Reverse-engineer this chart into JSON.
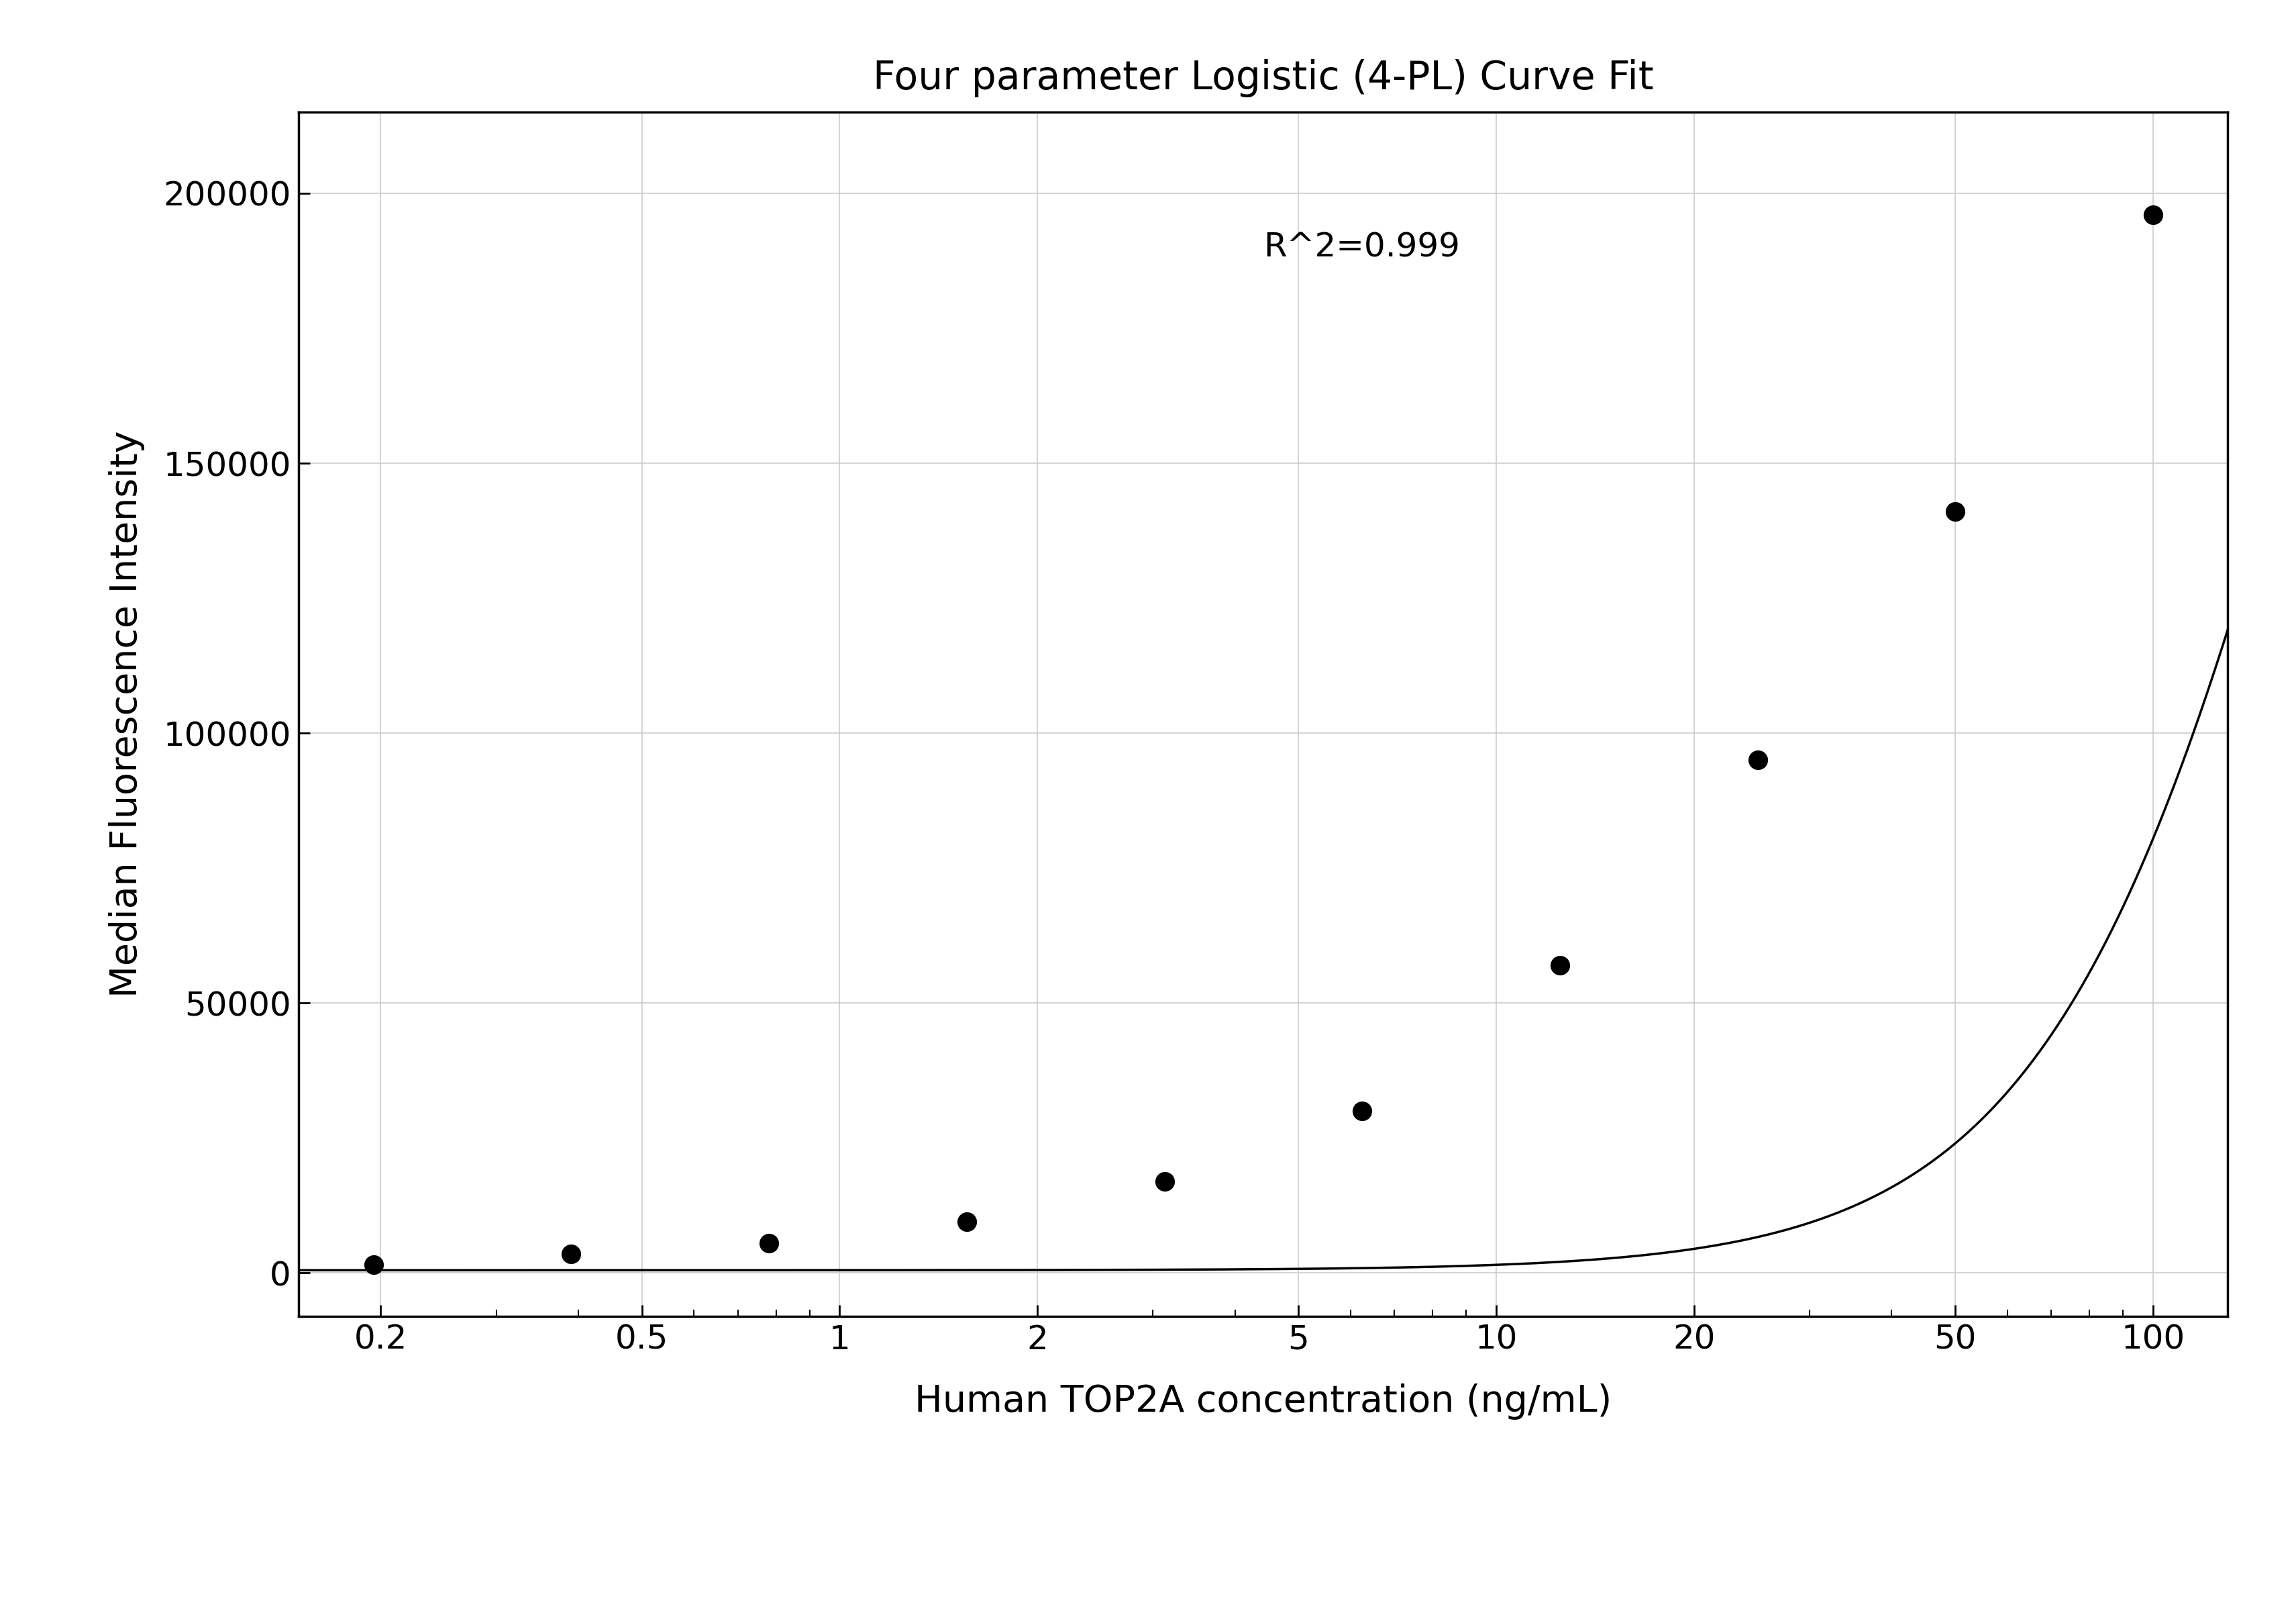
{
  "title": "Four parameter Logistic (4-PL) Curve Fit",
  "xlabel": "Human TOP2A concentration (ng/mL)",
  "ylabel": "Median Fluorescence Intensity",
  "r_squared": "R^2=0.999",
  "x_data": [
    0.195,
    0.39,
    0.78,
    1.5625,
    3.125,
    6.25,
    12.5,
    25,
    50,
    100
  ],
  "y_data": [
    1500,
    3500,
    5500,
    9500,
    17000,
    30000,
    57000,
    95000,
    141000,
    196000
  ],
  "xlim": [
    0.15,
    130
  ],
  "ylim": [
    -8000,
    215000
  ],
  "xticks": [
    0.2,
    0.5,
    1,
    2,
    5,
    10,
    20,
    50,
    100
  ],
  "yticks": [
    0,
    50000,
    100000,
    150000,
    200000
  ],
  "background_color": "#ffffff",
  "grid_color": "#cccccc",
  "line_color": "#000000",
  "point_color": "#000000",
  "title_fontsize": 42,
  "label_fontsize": 40,
  "tick_fontsize": 36,
  "annotation_fontsize": 36
}
